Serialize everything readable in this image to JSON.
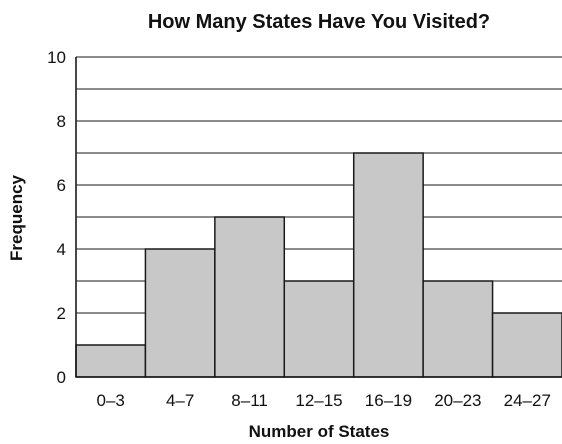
{
  "chart_data": {
    "type": "bar",
    "title": "How Many States Have You Visited?",
    "xlabel": "Number of States",
    "ylabel": "Frequency",
    "categories": [
      "0–3",
      "4–7",
      "8–11",
      "12–15",
      "16–19",
      "20–23",
      "24–27"
    ],
    "values": [
      1,
      4,
      5,
      3,
      7,
      3,
      2
    ],
    "ylim": [
      0,
      10
    ],
    "y_ticks": [
      0,
      2,
      4,
      6,
      8,
      10
    ],
    "grid": true,
    "grid_step": 1,
    "legend": "none"
  },
  "colors": {
    "bar_fill": "#c8c8c8",
    "bar_stroke": "#1a1a1a",
    "grid": "#1a1a1a",
    "text": "#111111"
  }
}
